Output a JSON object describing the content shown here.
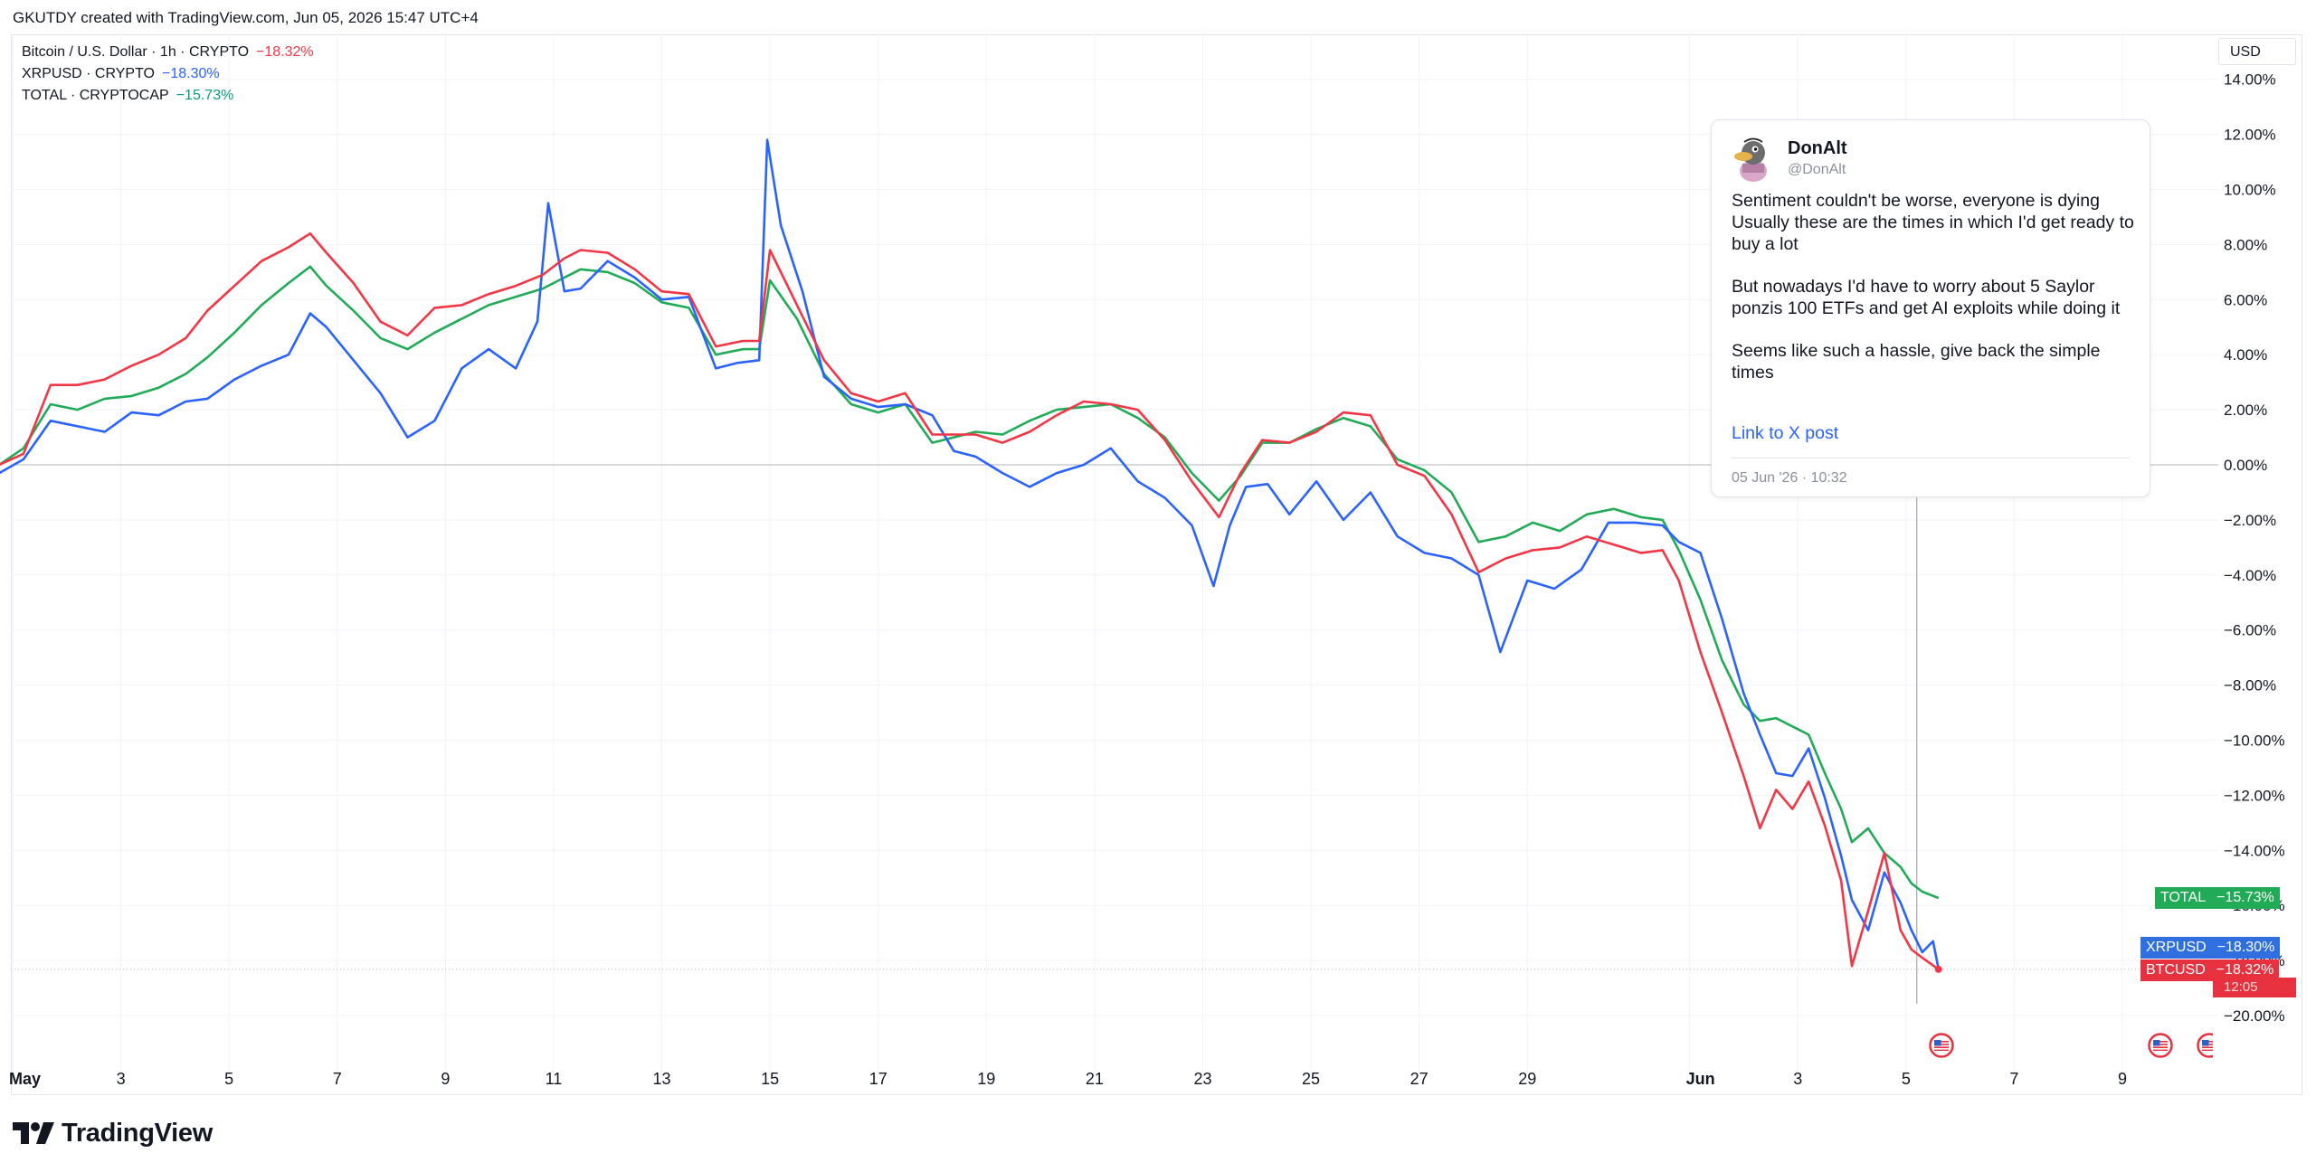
{
  "header": {
    "text": "GKUTDY created with TradingView.com, Jun 05, 2026 15:47 UTC+4"
  },
  "legend": [
    {
      "label": "Bitcoin / U.S. Dollar · 1h · CRYPTO",
      "change": "−18.32%",
      "color": "#f23645"
    },
    {
      "label": "XRPUSD · CRYPTO",
      "change": "−18.30%",
      "color": "#2962ff"
    },
    {
      "label": "TOTAL · CRYPTOCAP",
      "change": "−15.73%",
      "color": "#089981"
    }
  ],
  "currency": "USD",
  "tags": {
    "total": {
      "name": "TOTAL",
      "value": "−15.73%",
      "color": "#22ab57"
    },
    "xrp": {
      "name": "XRPUSD",
      "value": "−18.30%",
      "color": "#2f6fe0"
    },
    "btc": {
      "name": "BTCUSD",
      "value": "−18.32%",
      "countdown": "12:05",
      "color": "#e8313f"
    }
  },
  "tweet": {
    "name": "DonAlt",
    "handle": "@DonAlt",
    "paragraphs": [
      "Sentiment couldn't be worse, everyone is dying\nUsually these are the times in which I'd get ready to buy a lot",
      "But nowadays I'd have to worry about 5 Saylor ponzis 100 ETFs and get AI exploits while doing it",
      "Seems like such a hassle, give back the simple times"
    ],
    "link": "Link to X post",
    "timestamp": "05 Jun '26 · 10:32"
  },
  "logo": {
    "text": "TradingView"
  },
  "chart_data": {
    "type": "line",
    "title": "",
    "xlabel": "",
    "ylabel": "",
    "y_unit": "%",
    "ylim": [
      -20.9,
      14.4
    ],
    "y_ticks": [
      "14.00%",
      "12.00%",
      "10.00%",
      "8.00%",
      "6.00%",
      "4.00%",
      "2.00%",
      "0.00%",
      "−2.00%",
      "−4.00%",
      "−6.00%",
      "−8.00%",
      "−10.00%",
      "−12.00%",
      "−14.00%",
      "−16.00%",
      "−18.00%",
      "−20.00%"
    ],
    "y_tick_values": [
      14,
      12,
      10,
      8,
      6,
      4,
      2,
      0,
      -2,
      -4,
      -6,
      -8,
      -10,
      -12,
      -14,
      -16,
      -18,
      -20
    ],
    "x_ticks": [
      {
        "day": 1,
        "label": "May",
        "bold": true
      },
      {
        "day": 3,
        "label": "3"
      },
      {
        "day": 5,
        "label": "5"
      },
      {
        "day": 7,
        "label": "7"
      },
      {
        "day": 9,
        "label": "9"
      },
      {
        "day": 11,
        "label": "11"
      },
      {
        "day": 13,
        "label": "13"
      },
      {
        "day": 15,
        "label": "15"
      },
      {
        "day": 17,
        "label": "17"
      },
      {
        "day": 19,
        "label": "19"
      },
      {
        "day": 21,
        "label": "21"
      },
      {
        "day": 23,
        "label": "23"
      },
      {
        "day": 25,
        "label": "25"
      },
      {
        "day": 27,
        "label": "27"
      },
      {
        "day": 29,
        "label": "29"
      },
      {
        "day": 32,
        "label": "Jun",
        "bold": true
      },
      {
        "day": 34,
        "label": "3"
      },
      {
        "day": 36,
        "label": "5"
      },
      {
        "day": 38,
        "label": "7"
      },
      {
        "day": 40,
        "label": "9"
      }
    ],
    "xlim": [
      0.74,
      42.3
    ],
    "grid": true,
    "series": [
      {
        "name": "BTCUSD",
        "color": "#f23645",
        "x": [
          0.75,
          1.2,
          1.7,
          2.2,
          2.7,
          3.2,
          3.7,
          4.2,
          4.6,
          5.1,
          5.6,
          6.1,
          6.5,
          6.8,
          7.3,
          7.8,
          8.3,
          8.8,
          9.3,
          9.8,
          10.3,
          10.8,
          11.2,
          11.5,
          12.0,
          12.5,
          13.0,
          13.5,
          14.0,
          14.5,
          14.8,
          15.0,
          15.5,
          16.0,
          16.5,
          17.0,
          17.5,
          18.0,
          18.4,
          18.8,
          19.3,
          19.8,
          20.3,
          20.8,
          21.3,
          21.8,
          22.3,
          22.8,
          23.3,
          23.7,
          24.1,
          24.6,
          25.1,
          25.6,
          26.1,
          26.6,
          27.1,
          27.6,
          28.1,
          28.6,
          29.1,
          29.6,
          30.1,
          30.6,
          31.1,
          31.5,
          31.8,
          32.2,
          32.6,
          33.0,
          33.3,
          33.6,
          33.9,
          34.2,
          34.5,
          34.8,
          35.0,
          35.3,
          35.6,
          35.9,
          36.1,
          36.3,
          36.6
        ],
        "y": [
          0.0,
          0.4,
          2.9,
          2.9,
          3.1,
          3.6,
          4.0,
          4.6,
          5.6,
          6.5,
          7.4,
          7.9,
          8.4,
          7.7,
          6.6,
          5.2,
          4.7,
          5.7,
          5.8,
          6.2,
          6.5,
          6.9,
          7.5,
          7.8,
          7.7,
          7.1,
          6.3,
          6.2,
          4.3,
          4.5,
          4.5,
          7.8,
          5.8,
          3.8,
          2.6,
          2.3,
          2.6,
          1.1,
          1.1,
          1.1,
          0.8,
          1.2,
          1.8,
          2.3,
          2.2,
          2.0,
          0.9,
          -0.6,
          -1.9,
          -0.3,
          0.9,
          0.8,
          1.2,
          1.9,
          1.8,
          0.0,
          -0.4,
          -1.8,
          -3.9,
          -3.4,
          -3.1,
          -3.0,
          -2.6,
          -2.9,
          -3.2,
          -3.1,
          -4.2,
          -6.8,
          -9.0,
          -11.3,
          -13.2,
          -11.8,
          -12.5,
          -11.5,
          -13.1,
          -15.1,
          -18.2,
          -16.2,
          -14.1,
          -16.9,
          -17.6,
          -17.9,
          -18.32
        ]
      },
      {
        "name": "XRPUSD",
        "color": "#2962ff",
        "x": [
          0.75,
          1.2,
          1.7,
          2.2,
          2.7,
          3.2,
          3.7,
          4.2,
          4.6,
          5.1,
          5.6,
          6.1,
          6.5,
          6.8,
          7.3,
          7.8,
          8.3,
          8.8,
          9.3,
          9.8,
          10.3,
          10.7,
          10.9,
          11.2,
          11.5,
          12.0,
          12.5,
          13.0,
          13.5,
          14.0,
          14.4,
          14.8,
          14.95,
          15.2,
          15.6,
          16.0,
          16.5,
          17.0,
          17.5,
          18.0,
          18.4,
          18.8,
          19.3,
          19.8,
          20.3,
          20.8,
          21.3,
          21.8,
          22.3,
          22.8,
          23.2,
          23.5,
          23.8,
          24.2,
          24.6,
          25.1,
          25.6,
          26.1,
          26.6,
          27.1,
          27.6,
          28.1,
          28.5,
          29.0,
          29.5,
          30.0,
          30.5,
          31.0,
          31.5,
          31.8,
          32.2,
          32.6,
          33.0,
          33.3,
          33.6,
          33.9,
          34.2,
          34.5,
          34.8,
          35.0,
          35.3,
          35.6,
          35.9,
          36.1,
          36.3,
          36.5,
          36.6
        ],
        "y": [
          -0.3,
          0.2,
          1.6,
          1.4,
          1.2,
          1.9,
          1.8,
          2.3,
          2.4,
          3.1,
          3.6,
          4.0,
          5.5,
          5.0,
          3.8,
          2.6,
          1.0,
          1.6,
          3.5,
          4.2,
          3.5,
          5.2,
          9.5,
          6.3,
          6.4,
          7.4,
          6.8,
          6.0,
          6.1,
          3.5,
          3.7,
          3.8,
          11.8,
          8.7,
          6.3,
          3.2,
          2.4,
          2.1,
          2.2,
          1.8,
          0.5,
          0.3,
          -0.3,
          -0.8,
          -0.3,
          0.0,
          0.6,
          -0.6,
          -1.2,
          -2.2,
          -4.4,
          -2.2,
          -0.8,
          -0.7,
          -1.8,
          -0.6,
          -2.0,
          -1.0,
          -2.6,
          -3.2,
          -3.4,
          -4.0,
          -6.8,
          -4.2,
          -4.5,
          -3.8,
          -2.1,
          -2.1,
          -2.2,
          -2.8,
          -3.2,
          -5.6,
          -8.3,
          -9.8,
          -11.2,
          -11.3,
          -10.3,
          -12.1,
          -14.2,
          -15.8,
          -16.9,
          -14.8,
          -15.9,
          -16.9,
          -17.7,
          -17.3,
          -18.3
        ]
      },
      {
        "name": "TOTAL",
        "color": "#22ab57",
        "x": [
          0.75,
          1.2,
          1.7,
          2.2,
          2.7,
          3.2,
          3.7,
          4.2,
          4.6,
          5.1,
          5.6,
          6.1,
          6.5,
          6.8,
          7.3,
          7.8,
          8.3,
          8.8,
          9.3,
          9.8,
          10.3,
          10.8,
          11.2,
          11.5,
          12.0,
          12.5,
          13.0,
          13.5,
          14.0,
          14.5,
          14.8,
          15.0,
          15.5,
          16.0,
          16.5,
          17.0,
          17.5,
          18.0,
          18.4,
          18.8,
          19.3,
          19.8,
          20.3,
          20.8,
          21.3,
          21.8,
          22.3,
          22.8,
          23.3,
          23.7,
          24.1,
          24.6,
          25.1,
          25.6,
          26.1,
          26.6,
          27.1,
          27.6,
          28.1,
          28.6,
          29.1,
          29.6,
          30.1,
          30.6,
          31.1,
          31.5,
          31.8,
          32.2,
          32.6,
          33.0,
          33.3,
          33.6,
          33.9,
          34.2,
          34.5,
          34.8,
          35.0,
          35.3,
          35.6,
          35.9,
          36.1,
          36.3,
          36.6
        ],
        "y": [
          0.0,
          0.6,
          2.2,
          2.0,
          2.4,
          2.5,
          2.8,
          3.3,
          3.9,
          4.8,
          5.8,
          6.6,
          7.2,
          6.5,
          5.6,
          4.6,
          4.2,
          4.8,
          5.3,
          5.8,
          6.1,
          6.4,
          6.8,
          7.1,
          7.0,
          6.6,
          5.9,
          5.7,
          4.0,
          4.2,
          4.2,
          6.7,
          5.3,
          3.3,
          2.2,
          1.9,
          2.2,
          0.8,
          1.0,
          1.2,
          1.1,
          1.6,
          2.0,
          2.1,
          2.2,
          1.7,
          1.0,
          -0.3,
          -1.3,
          -0.4,
          0.8,
          0.8,
          1.3,
          1.7,
          1.4,
          0.2,
          -0.2,
          -1.0,
          -2.8,
          -2.6,
          -2.1,
          -2.4,
          -1.8,
          -1.6,
          -1.9,
          -2.0,
          -3.1,
          -4.9,
          -7.1,
          -8.7,
          -9.3,
          -9.2,
          -9.5,
          -9.8,
          -11.2,
          -12.5,
          -13.7,
          -13.2,
          -14.1,
          -14.6,
          -15.2,
          -15.5,
          -15.73
        ]
      }
    ]
  }
}
